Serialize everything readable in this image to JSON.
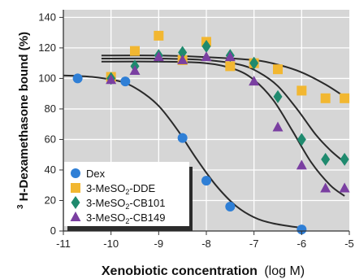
{
  "chart_data": {
    "type": "scatter",
    "xlabel": "Xenobiotic concentration",
    "xlabel_unit": "(log M)",
    "ylabel": "H-Dexamethasone bound (%)",
    "ylabel_superscript": "3",
    "xlim": [
      -11,
      -5
    ],
    "ylim": [
      0,
      145
    ],
    "x_ticks": [
      "-11",
      "-10",
      "-9",
      "-8",
      "-7",
      "-6",
      "-5"
    ],
    "y_ticks": [
      "0",
      "20",
      "40",
      "60",
      "80",
      "100",
      "120",
      "140"
    ],
    "x_tick_values": [
      -11,
      -10,
      -9,
      -8,
      -7,
      -6,
      -5
    ],
    "y_tick_values": [
      0,
      20,
      40,
      60,
      80,
      100,
      120,
      140
    ],
    "grid": true,
    "background": "#d6d6d6",
    "grid_color": "#ffffff",
    "legend_position": "bottom-left",
    "series": [
      {
        "name": "Dex",
        "name_parts": [
          "Dex"
        ],
        "marker": "circle",
        "color": "#2f7fd6",
        "x": [
          -10.7,
          -10.0,
          -9.7,
          -8.5,
          -8.0,
          -7.5,
          -6.0
        ],
        "y": [
          100,
          100,
          98,
          61,
          33,
          16,
          1
        ],
        "fit": [
          [
            -11,
            102
          ],
          [
            -10.4,
            101
          ],
          [
            -9.8,
            98
          ],
          [
            -9.4,
            92
          ],
          [
            -9.0,
            82
          ],
          [
            -8.6,
            66
          ],
          [
            -8.2,
            47
          ],
          [
            -7.8,
            30
          ],
          [
            -7.4,
            17
          ],
          [
            -7.0,
            9
          ],
          [
            -6.6,
            5
          ],
          [
            -6.0,
            2
          ]
        ]
      },
      {
        "name": "3-MeSO2-DDE",
        "name_parts": [
          "3-MeSO",
          "2",
          "-DDE"
        ],
        "marker": "square",
        "color": "#f2b731",
        "x": [
          -10.0,
          -9.5,
          -9.0,
          -8.5,
          -8.0,
          -7.5,
          -7.0,
          -6.5,
          -6.0,
          -5.5,
          -5.1
        ],
        "y": [
          101,
          118,
          128,
          112,
          124,
          108,
          110,
          106,
          92,
          87,
          87
        ],
        "fit": [
          [
            -10.2,
            115
          ],
          [
            -9.0,
            115
          ],
          [
            -8.0,
            114
          ],
          [
            -7.0,
            112
          ],
          [
            -6.5,
            109
          ],
          [
            -6.0,
            104
          ],
          [
            -5.5,
            96
          ],
          [
            -5.1,
            88
          ]
        ]
      },
      {
        "name": "3-MeSO2-CB101",
        "name_parts": [
          "3-MeSO",
          "2",
          "-CB101"
        ],
        "marker": "diamond",
        "color": "#1f8a6e",
        "x": [
          -10.0,
          -9.5,
          -9.0,
          -8.5,
          -8.0,
          -7.5,
          -7.0,
          -6.5,
          -6.0,
          -5.5,
          -5.1
        ],
        "y": [
          100,
          108,
          115,
          117,
          121,
          115,
          110,
          88,
          60,
          47,
          47
        ],
        "fit": [
          [
            -10.2,
            113
          ],
          [
            -9.0,
            113
          ],
          [
            -8.0,
            112
          ],
          [
            -7.3,
            109
          ],
          [
            -6.9,
            104
          ],
          [
            -6.5,
            95
          ],
          [
            -6.1,
            80
          ],
          [
            -5.7,
            63
          ],
          [
            -5.4,
            53
          ],
          [
            -5.1,
            45
          ]
        ]
      },
      {
        "name": "3-MeSO2-CB149",
        "name_parts": [
          "3-MeSO",
          "2",
          "-CB149"
        ],
        "marker": "triangle",
        "color": "#7a3fa1",
        "x": [
          -10.0,
          -9.5,
          -9.0,
          -8.5,
          -8.0,
          -7.5,
          -7.0,
          -6.5,
          -6.0,
          -5.5,
          -5.1
        ],
        "y": [
          99,
          105,
          114,
          112,
          114,
          114,
          98,
          68,
          43,
          28,
          28
        ],
        "fit": [
          [
            -10.2,
            111
          ],
          [
            -9.0,
            111
          ],
          [
            -8.0,
            110
          ],
          [
            -7.4,
            106
          ],
          [
            -7.0,
            99
          ],
          [
            -6.6,
            86
          ],
          [
            -6.2,
            66
          ],
          [
            -5.8,
            45
          ],
          [
            -5.4,
            30
          ],
          [
            -5.1,
            23
          ]
        ]
      }
    ]
  }
}
